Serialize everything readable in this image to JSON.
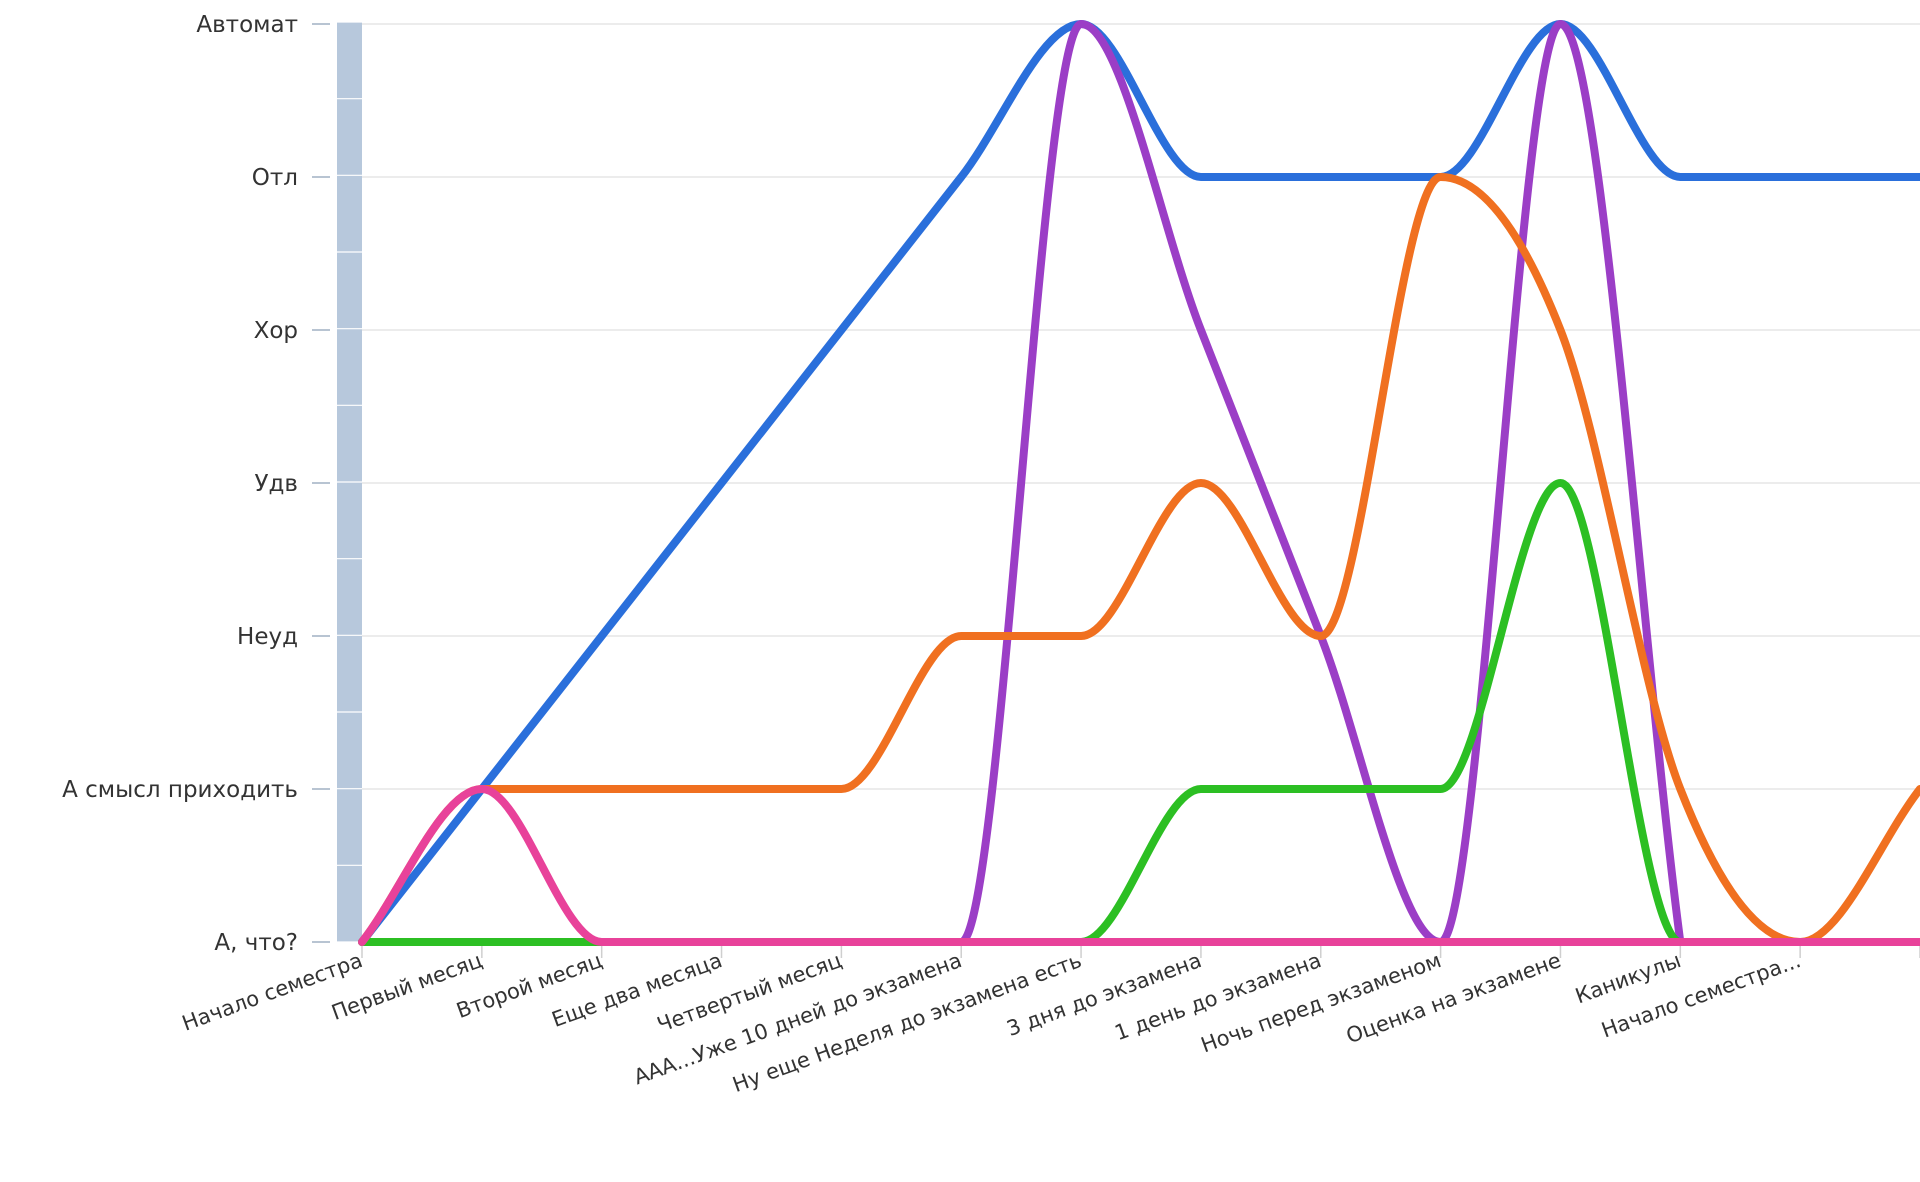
{
  "chart_data": {
    "type": "line",
    "title": "",
    "xlabel": "",
    "ylabel": "",
    "y_categories": [
      "А, что?",
      "А смысл приходить",
      "Неуд",
      "Удв",
      "Хор",
      "Отл",
      "Автомат"
    ],
    "x_categories": [
      "Начало семестра",
      "Первый месяц",
      "Второй месяц",
      "Еще два месяца",
      "Четвертый месяц",
      "ААА...Уже 10 дней до экзамена",
      "Ну еще Неделя до экзамена есть",
      "3 дня до экзамена",
      "1 день до экзамена",
      "Ночь перед экзаменом",
      "Оценка на экзамене",
      "Каникулы",
      "Начало семестра..."
    ],
    "ylim": [
      0,
      6
    ],
    "xlim": [
      0,
      13
    ],
    "grid": true,
    "legend": "none",
    "series": [
      {
        "color": "#2a6fdb",
        "x": [
          0,
          1,
          2,
          3,
          4,
          5,
          6,
          7,
          8,
          9,
          10,
          11,
          12,
          13
        ],
        "y": [
          0,
          1,
          2,
          3,
          4,
          5,
          6,
          5,
          5,
          5,
          6,
          5,
          5,
          5
        ]
      },
      {
        "color": "#9b3ec6",
        "x": [
          0,
          1,
          2,
          3,
          4,
          5,
          6,
          7,
          8,
          9,
          10,
          11
        ],
        "y": [
          0,
          0,
          0,
          0,
          0,
          0,
          6,
          4,
          2,
          0,
          6,
          0
        ]
      },
      {
        "color": "#f07020",
        "x": [
          0,
          1,
          2,
          3,
          4,
          5,
          6,
          7,
          8,
          9,
          10,
          11,
          12,
          13
        ],
        "y": [
          0,
          1,
          1,
          1,
          1,
          2,
          2,
          3,
          2,
          5,
          4,
          1,
          0,
          1
        ]
      },
      {
        "color": "#2cbf23",
        "x": [
          0,
          1,
          2,
          3,
          4,
          5,
          6,
          7,
          8,
          9,
          10,
          11,
          12,
          13
        ],
        "y": [
          0,
          0,
          0,
          0,
          0,
          0,
          0,
          1,
          1,
          1,
          3,
          0,
          0,
          0
        ]
      },
      {
        "color": "#e8429a",
        "x": [
          0,
          1,
          2,
          3,
          4,
          5,
          6,
          7,
          8,
          9,
          10,
          11,
          12,
          13
        ],
        "y": [
          0,
          1,
          0,
          0,
          0,
          0,
          0,
          0,
          0,
          0,
          0,
          0,
          0,
          0
        ]
      }
    ]
  }
}
